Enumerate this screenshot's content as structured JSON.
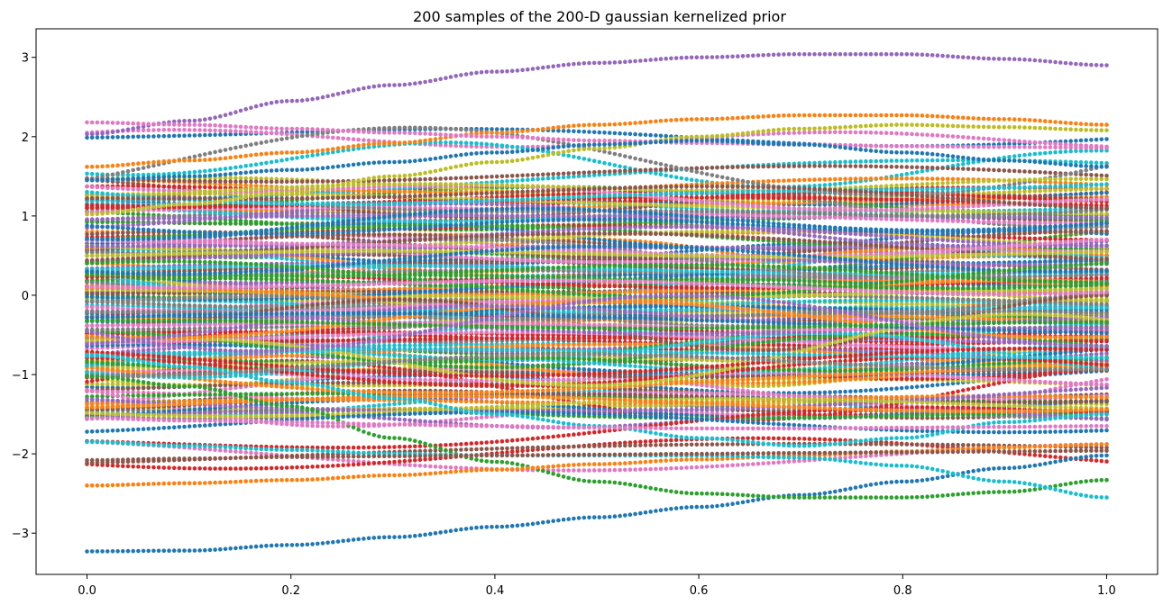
{
  "chart_data": {
    "type": "scatter",
    "title": "200 samples of the 200-D gaussian kernelized prior",
    "xlabel": "",
    "ylabel": "",
    "xlim": [
      -0.05,
      1.05
    ],
    "ylim": [
      -3.52,
      3.36
    ],
    "x_ticks": [
      0.0,
      0.2,
      0.4,
      0.6,
      0.8,
      1.0
    ],
    "x_tick_labels": [
      "0.0",
      "0.2",
      "0.4",
      "0.6",
      "0.8",
      "1.0"
    ],
    "y_ticks": [
      -3,
      -2,
      -1,
      0,
      1,
      2,
      3
    ],
    "y_tick_labels": [
      "−3",
      "−2",
      "−1",
      "0",
      "1",
      "2",
      "3"
    ],
    "grid": false,
    "legend": "none",
    "n_series": 200,
    "points_per_series": 200,
    "x_range": [
      0.0,
      1.0
    ],
    "palette": [
      "#1f77b4",
      "#ff7f0e",
      "#2ca02c",
      "#d62728",
      "#9467bd",
      "#8c564b",
      "#e377c2",
      "#7f7f7f",
      "#bcbd22",
      "#17becf"
    ],
    "highlighted_series": [
      {
        "color": "#9467bd",
        "x": [
          0.0,
          0.1,
          0.2,
          0.3,
          0.4,
          0.5,
          0.6,
          0.7,
          0.8,
          0.9,
          1.0
        ],
        "y": [
          2.03,
          2.2,
          2.45,
          2.65,
          2.82,
          2.93,
          3.0,
          3.04,
          3.04,
          2.98,
          2.9
        ]
      },
      {
        "color": "#1f77b4",
        "x": [
          0.0,
          0.1,
          0.2,
          0.3,
          0.4,
          0.5,
          0.6,
          0.7,
          0.8,
          0.9,
          1.0
        ],
        "y": [
          -3.23,
          -3.22,
          -3.15,
          -3.05,
          -2.92,
          -2.8,
          -2.67,
          -2.52,
          -2.35,
          -2.18,
          -2.02
        ]
      },
      {
        "color": "#2ca02c",
        "x": [
          0.0,
          0.1,
          0.2,
          0.3,
          0.4,
          0.5,
          0.6,
          0.7,
          0.8,
          0.9,
          1.0
        ],
        "y": [
          -1.02,
          -1.15,
          -1.4,
          -1.8,
          -2.1,
          -2.35,
          -2.5,
          -2.55,
          -2.55,
          -2.48,
          -2.33
        ]
      },
      {
        "color": "#ff7f0e",
        "x": [
          0.0,
          0.1,
          0.2,
          0.3,
          0.4,
          0.5,
          0.6,
          0.7,
          0.8,
          0.9,
          1.0
        ],
        "y": [
          -2.4,
          -2.37,
          -2.33,
          -2.27,
          -2.2,
          -2.13,
          -2.07,
          -2.02,
          -1.97,
          -1.92,
          -1.88
        ]
      },
      {
        "color": "#17becf",
        "x": [
          0.0,
          0.1,
          0.2,
          0.3,
          0.4,
          0.5,
          0.6,
          0.7,
          0.8,
          0.9,
          1.0
        ],
        "y": [
          -1.85,
          -1.9,
          -1.95,
          -2.0,
          -2.02,
          -2.02,
          -2.02,
          -2.05,
          -2.15,
          -2.35,
          -2.55
        ]
      },
      {
        "color": "#8c564b",
        "x": [
          0.0,
          0.1,
          0.2,
          0.3,
          0.4,
          0.5,
          0.6,
          0.7,
          0.8,
          0.9,
          1.0
        ],
        "y": [
          -2.08,
          -2.06,
          -2.04,
          -2.03,
          -2.02,
          -2.01,
          -2.0,
          -1.99,
          -1.98,
          -1.97,
          -1.96
        ]
      },
      {
        "color": "#ff7f0e",
        "x": [
          0.0,
          0.1,
          0.2,
          0.3,
          0.4,
          0.5,
          0.6,
          0.7,
          0.8,
          0.9,
          1.0
        ],
        "y": [
          1.62,
          1.7,
          1.8,
          1.92,
          2.05,
          2.15,
          2.22,
          2.27,
          2.27,
          2.22,
          2.15
        ]
      },
      {
        "color": "#bcbd22",
        "x": [
          0.0,
          0.1,
          0.2,
          0.3,
          0.4,
          0.5,
          0.6,
          0.7,
          0.8,
          0.9,
          1.0
        ],
        "y": [
          1.02,
          1.15,
          1.3,
          1.5,
          1.68,
          1.85,
          2.0,
          2.1,
          2.15,
          2.12,
          2.08
        ]
      },
      {
        "color": "#e377c2",
        "x": [
          0.0,
          0.1,
          0.2,
          0.3,
          0.4,
          0.5,
          0.6,
          0.7,
          0.8,
          0.9,
          1.0
        ],
        "y": [
          2.18,
          2.15,
          2.1,
          2.05,
          2.0,
          1.95,
          1.92,
          1.9,
          1.88,
          1.87,
          1.86
        ]
      },
      {
        "color": "#1f77b4",
        "x": [
          0.0,
          0.1,
          0.2,
          0.3,
          0.4,
          0.5,
          0.6,
          0.7,
          0.8,
          0.9,
          1.0
        ],
        "y": [
          1.45,
          1.5,
          1.58,
          1.68,
          1.8,
          1.9,
          1.95,
          1.9,
          1.8,
          1.7,
          1.62
        ]
      },
      {
        "color": "#17becf",
        "x": [
          0.0,
          0.1,
          0.2,
          0.3,
          0.4,
          0.5,
          0.6,
          0.7,
          0.8,
          0.9,
          1.0
        ],
        "y": [
          -0.75,
          -0.9,
          -1.1,
          -1.3,
          -1.5,
          -1.65,
          -1.8,
          -1.9,
          -1.8,
          -1.6,
          -1.5
        ]
      },
      {
        "color": "#e377c2",
        "x": [
          0.0,
          0.1,
          0.2,
          0.3,
          0.4,
          0.5,
          0.6,
          0.7,
          0.8,
          0.9,
          1.0
        ],
        "y": [
          -1.55,
          -1.58,
          -1.6,
          -1.63,
          -1.65,
          -1.67,
          -1.68,
          -1.68,
          -1.67,
          -1.66,
          -1.65
        ]
      }
    ]
  }
}
